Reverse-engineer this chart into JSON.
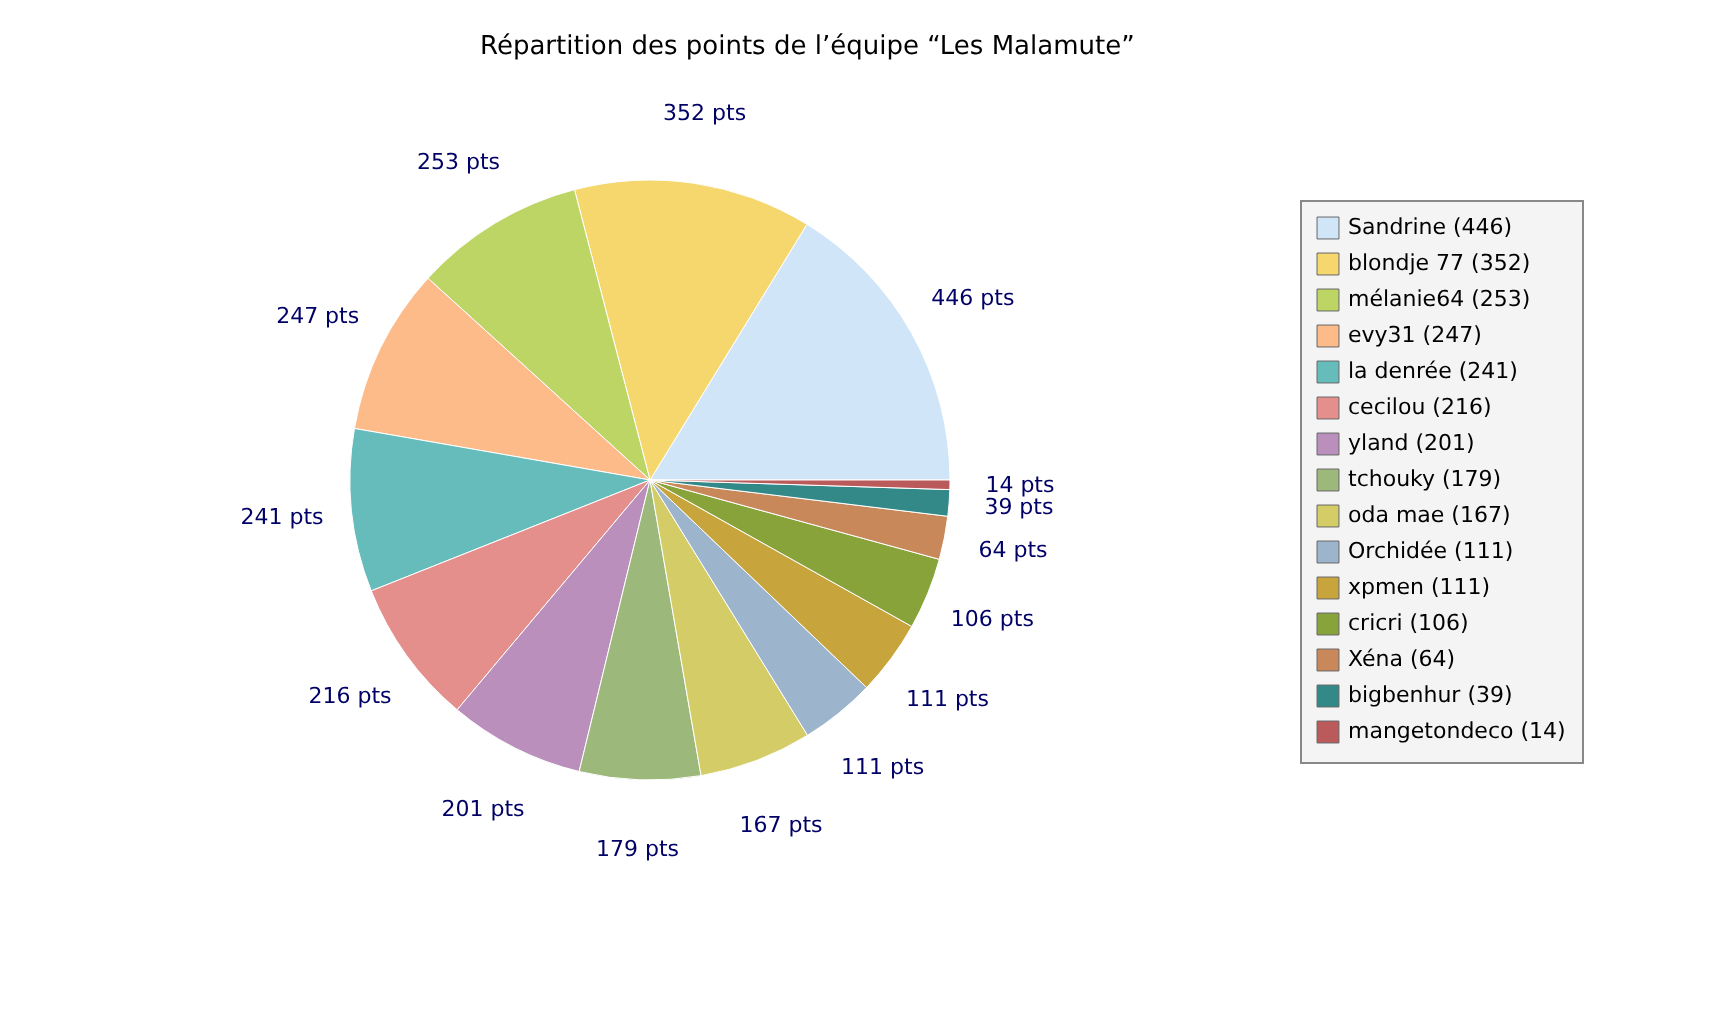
{
  "chart_data": {
    "type": "pie",
    "title": "Répartition des points de l’équipe “Les Malamute”",
    "categories": [
      "Sandrine (446)",
      "blondje 77 (352)",
      "mélanie64 (253)",
      "evy31 (247)",
      "la denrée (241)",
      "cecilou (216)",
      "yland (201)",
      "tchouky (179)",
      "oda mae (167)",
      "Orchidée (111)",
      "xpmen (111)",
      "cricri (106)",
      "Xéna (64)",
      "bigbenhur (39)",
      "mangetondeco (14)"
    ],
    "values": [
      446,
      352,
      253,
      247,
      241,
      216,
      201,
      179,
      167,
      111,
      111,
      106,
      64,
      39,
      14
    ],
    "value_labels": [
      "446 pts",
      "352 pts",
      "253 pts",
      "247 pts",
      "241 pts",
      "216 pts",
      "201 pts",
      "179 pts",
      "167 pts",
      "111 pts",
      "111 pts",
      "106 pts",
      "64 pts",
      "39 pts",
      "14 pts"
    ],
    "colors": [
      "#d0e6f8",
      "#f5d76e",
      "#bcd565",
      "#fdbb8a",
      "#66bbbb",
      "#e58f8c",
      "#bb8fbb",
      "#9cb87a",
      "#d4cc66",
      "#9cb4cc",
      "#c8a43c",
      "#88a33a",
      "#c8885a",
      "#338888",
      "#bb5a5a"
    ],
    "legend": "right"
  }
}
